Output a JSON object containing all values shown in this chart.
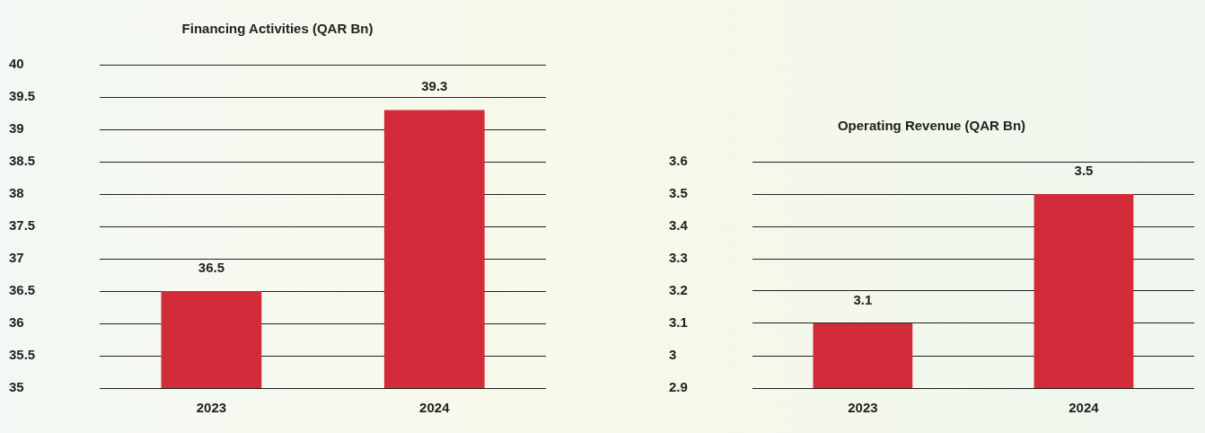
{
  "chart_data": [
    {
      "type": "bar",
      "title": "Financing Activities (QAR Bn)",
      "categories": [
        "2023",
        "2024"
      ],
      "values": [
        36.5,
        39.3
      ],
      "color": "#d22b3a",
      "ylim": [
        35,
        40
      ],
      "yticks": [
        35,
        35.5,
        36,
        36.5,
        37,
        37.5,
        38,
        38.5,
        39,
        39.5,
        40
      ],
      "grid": "y",
      "data_labels": true,
      "legend": false
    },
    {
      "type": "bar",
      "title": "Operating Revenue (QAR Bn)",
      "categories": [
        "2023",
        "2024"
      ],
      "values": [
        3.1,
        3.5
      ],
      "color": "#d22b3a",
      "ylim": [
        2.9,
        3.6
      ],
      "yticks": [
        2.9,
        3,
        3.1,
        3.2,
        3.3,
        3.4,
        3.5,
        3.6
      ],
      "grid": "y",
      "data_labels": true,
      "legend": false
    }
  ]
}
